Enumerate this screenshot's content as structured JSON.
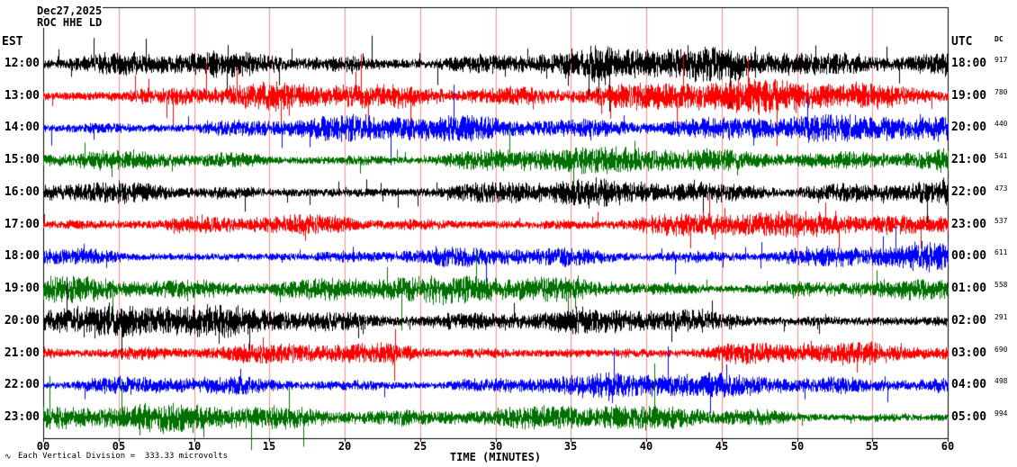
{
  "header": {
    "date": "Dec27,2025",
    "station": "ROC HHE LD"
  },
  "axis": {
    "left_timezone": "EST",
    "right_timezone": "UTC",
    "dc_label": "DC",
    "x_title": "TIME (MINUTES)",
    "x_ticks": [
      "00",
      "05",
      "10",
      "15",
      "20",
      "25",
      "30",
      "35",
      "40",
      "45",
      "50",
      "55",
      "60"
    ]
  },
  "footer": {
    "marker": "∿",
    "scale_note": "Each Vertical Division =  333.33 microvolts"
  },
  "colors": {
    "black": "#000000",
    "red": "#ff0000",
    "blue": "#0000ff",
    "green": "#007000",
    "grid": "#ff0000",
    "frame": "#000000"
  },
  "chart_data": {
    "type": "line",
    "description": "12-hour helicorder (webicorder) seismogram for station ROC HHE LD. One 60-minute trace per row of continuous high-amplitude seismic noise; trace colors cycle black, red, blue, green. Left axis EST hour, right axis UTC hour plus DC offset value per trace.",
    "title": "ROC HHE LD Dec27,2025",
    "xlabel": "TIME (MINUTES)",
    "x_range_minutes": [
      0,
      60
    ],
    "x_tick_interval_minutes": 5,
    "vertical_division_microvolts": 333.33,
    "rows": [
      {
        "est": "12:00",
        "utc": "18:00",
        "dc": 917,
        "color": "#000000",
        "relative_amplitude": 1.25
      },
      {
        "est": "13:00",
        "utc": "19:00",
        "dc": 780,
        "color": "#ff0000",
        "relative_amplitude": 1.1
      },
      {
        "est": "14:00",
        "utc": "20:00",
        "dc": 440,
        "color": "#0000ff",
        "relative_amplitude": 1.0
      },
      {
        "est": "15:00",
        "utc": "21:00",
        "dc": 541,
        "color": "#007000",
        "relative_amplitude": 1.0
      },
      {
        "est": "16:00",
        "utc": "22:00",
        "dc": 473,
        "color": "#000000",
        "relative_amplitude": 1.1
      },
      {
        "est": "17:00",
        "utc": "23:00",
        "dc": 537,
        "color": "#ff0000",
        "relative_amplitude": 1.05
      },
      {
        "est": "18:00",
        "utc": "00:00",
        "dc": 611,
        "color": "#0000ff",
        "relative_amplitude": 0.95
      },
      {
        "est": "19:00",
        "utc": "01:00",
        "dc": 558,
        "color": "#007000",
        "relative_amplitude": 1.0
      },
      {
        "est": "20:00",
        "utc": "02:00",
        "dc": 291,
        "color": "#000000",
        "relative_amplitude": 1.1
      },
      {
        "est": "21:00",
        "utc": "03:00",
        "dc": 690,
        "color": "#ff0000",
        "relative_amplitude": 1.05
      },
      {
        "est": "22:00",
        "utc": "04:00",
        "dc": 498,
        "color": "#0000ff",
        "relative_amplitude": 0.9
      },
      {
        "est": "23:00",
        "utc": "05:00",
        "dc": 994,
        "color": "#007000",
        "relative_amplitude": 0.95
      }
    ]
  }
}
